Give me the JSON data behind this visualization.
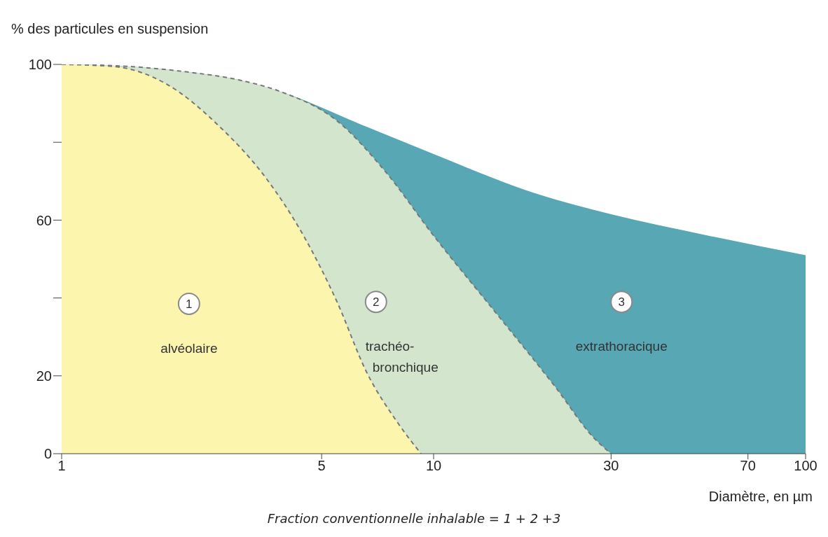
{
  "chart_data": {
    "type": "area",
    "ylabel": "% des particules en suspension",
    "xlabel": "Diamètre, en µm",
    "log": "x",
    "xlim": [
      1,
      100
    ],
    "xticks": [
      1,
      5,
      10,
      30,
      70,
      100
    ],
    "ylim": [
      0,
      100
    ],
    "yticks": [
      0,
      20,
      {
        "value": 40,
        "label": null
      },
      60,
      {
        "value": 80,
        "label": null
      },
      100
    ],
    "series": [
      {
        "name": "alvéolaire",
        "color": "#fbf5ad",
        "line_style": "dashed",
        "x": [
          1,
          1.37,
          1.91,
          2.66,
          3.53,
          4.47,
          5.5,
          6.6,
          8.0,
          9.25
        ],
        "values": [
          100,
          99.5,
          95,
          84,
          71,
          56,
          39,
          21,
          8,
          0
        ]
      },
      {
        "name": "trachéo-bronchique",
        "color": "#d3e5cc",
        "line_style": "dashed",
        "x": [
          1,
          1.5,
          2.2,
          3.0,
          3.88,
          5.5,
          7.4,
          10,
          14.9,
          21.3,
          27,
          30
        ],
        "values": [
          100,
          99.5,
          98,
          96,
          93,
          85.5,
          72.6,
          56,
          35.5,
          17,
          4,
          0
        ]
      },
      {
        "name": "extrathoracique",
        "color": "#57a7b4",
        "x": [
          1,
          1.5,
          2.2,
          3.0,
          3.88,
          6.6,
          10,
          18.6,
          30,
          54.9,
          100
        ],
        "values": [
          100,
          99.5,
          98,
          96,
          93,
          84,
          77,
          67,
          61.5,
          56,
          51
        ]
      }
    ],
    "annotations": [
      {
        "text": "1",
        "x": 2.2,
        "y": 38.5
      },
      {
        "text": "2",
        "x": 7.0,
        "y": 39
      },
      {
        "text": "3",
        "x": 32,
        "y": 39
      },
      "Fraction conventionnelle inhalable = 1 + 2 +3"
    ]
  }
}
